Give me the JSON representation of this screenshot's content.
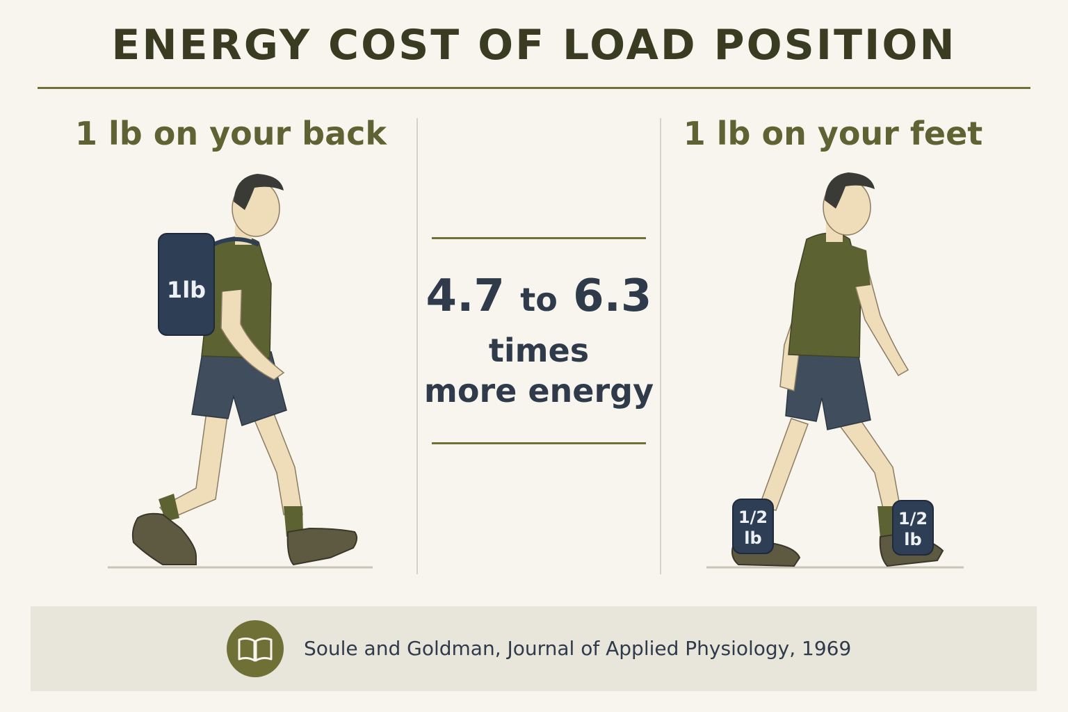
{
  "title": "ENERGY COST OF LOAD POSITION",
  "left_panel": {
    "heading": "1 lb on your back",
    "pack_label": "1lb",
    "icon": "man-with-backpack-icon"
  },
  "center_panel": {
    "range_low": "4.7",
    "range_word": "to",
    "range_high": "6.3",
    "line2": "times",
    "line3": "more energy"
  },
  "right_panel": {
    "heading": "1 lb on your feet",
    "weight_left": {
      "fraction": "1/2",
      "unit": "lb"
    },
    "weight_right": {
      "fraction": "1/2",
      "unit": "lb"
    },
    "icon": "man-with-ankle-weights-icon"
  },
  "footer": {
    "icon": "open-book-icon",
    "citation": "Soule and Goldman, Journal of Applied Physiology, 1969"
  },
  "colors": {
    "background": "#f7f5ee",
    "title": "#3a3c22",
    "accent_olive": "#6f7036",
    "heading_olive": "#5f6232",
    "navy_text": "#2f3a4a",
    "shirt": "#5c6232",
    "shorts": "#3f4d5c",
    "weight": "#2e3e54",
    "skin": "#efdcb9",
    "footer_band": "#e8e5da"
  }
}
